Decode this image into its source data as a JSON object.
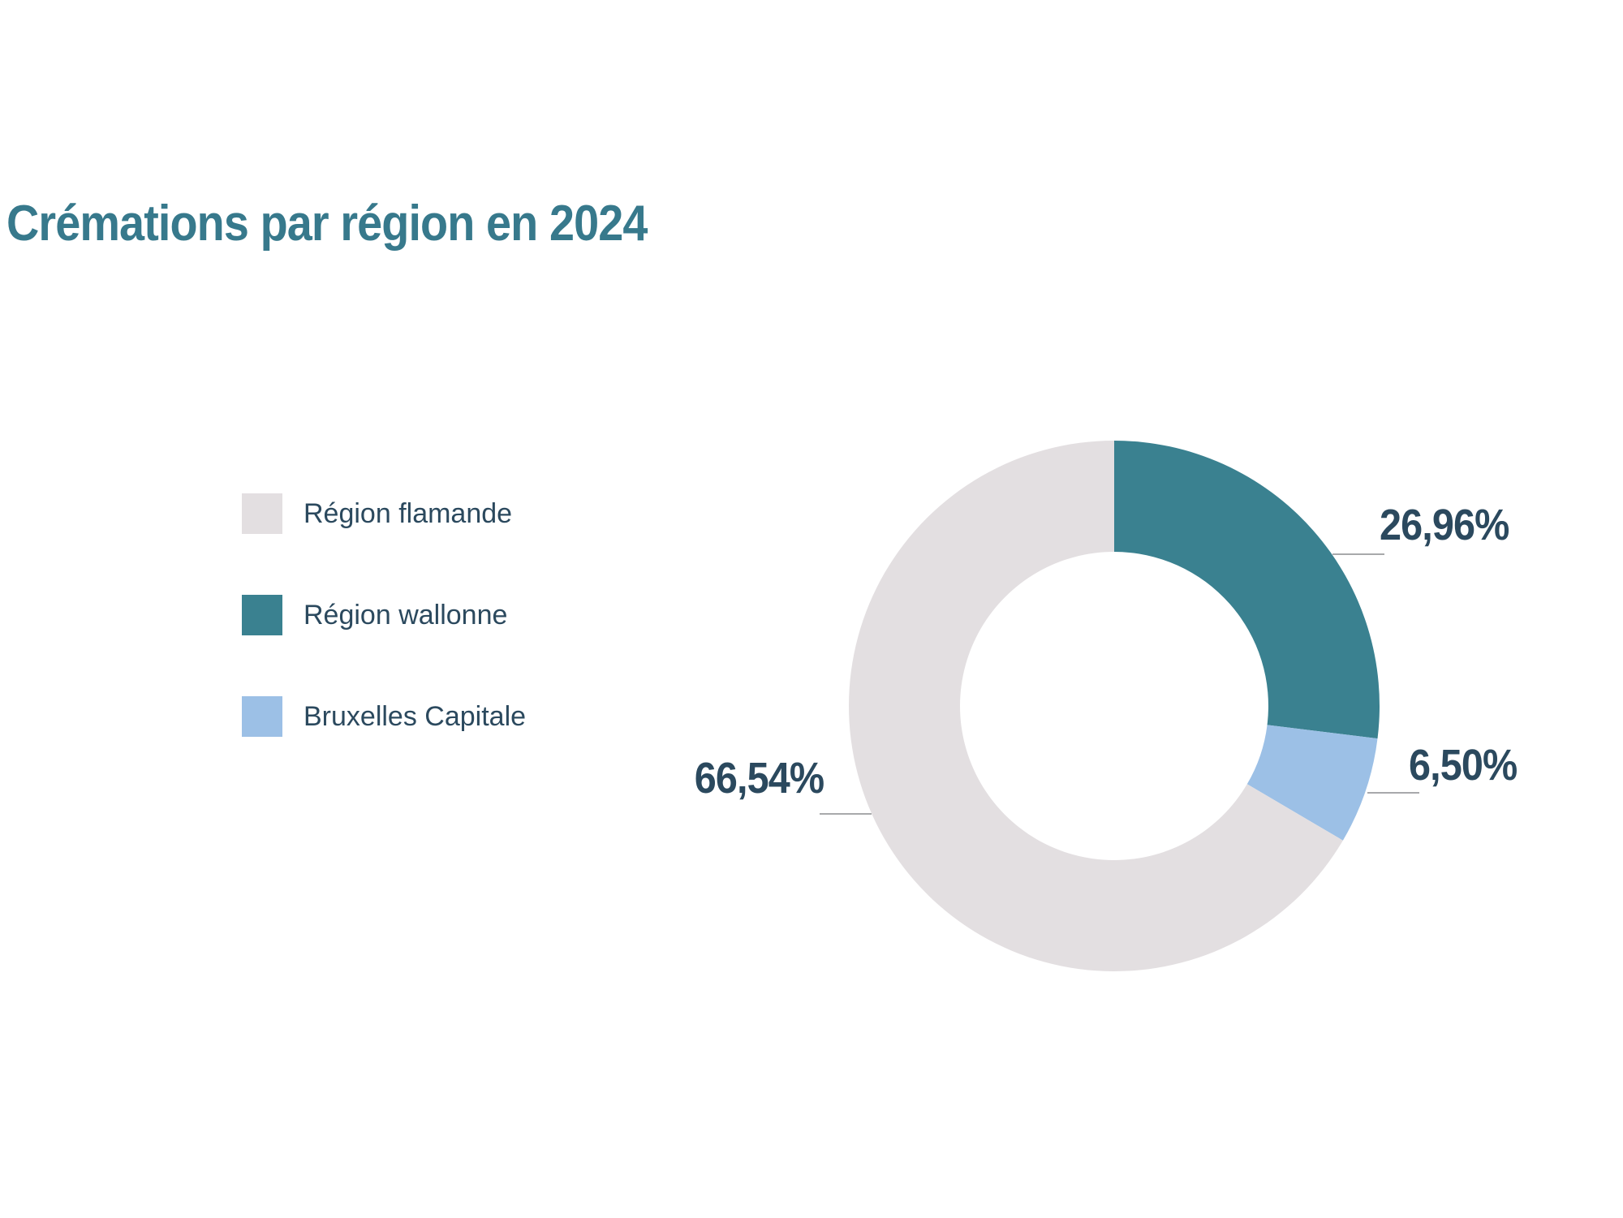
{
  "page": {
    "title": "Crémations par région en 2024",
    "title_color": "#37798c",
    "background": "#ffffff"
  },
  "legend": {
    "position": "left",
    "text_color": "#2b495e",
    "items": [
      {
        "label": "Région flamande",
        "color": "#e3dfe1"
      },
      {
        "label": "Région wallonne",
        "color": "#3a8190"
      },
      {
        "label": "Bruxelles Capitale",
        "color": "#9cc0e6"
      }
    ]
  },
  "chart_data": {
    "type": "pie",
    "subtype": "donut",
    "title": "Crémations par région en 2024",
    "unit": "%",
    "direction": "clockwise",
    "start_angle_deg": 0,
    "inner_radius_ratio": 0.58,
    "legend_position": "left",
    "label_color": "#2b495e",
    "callout_line_color": "#a8a9ab",
    "segments": [
      {
        "label": "Région wallonne",
        "value": 26.96,
        "display": "26,96%",
        "color": "#3a8190"
      },
      {
        "label": "Bruxelles Capitale",
        "value": 6.5,
        "display": "6,50%",
        "color": "#9cc0e6"
      },
      {
        "label": "Région flamande",
        "value": 66.54,
        "display": "66,54%",
        "color": "#e3dfe1"
      }
    ]
  }
}
